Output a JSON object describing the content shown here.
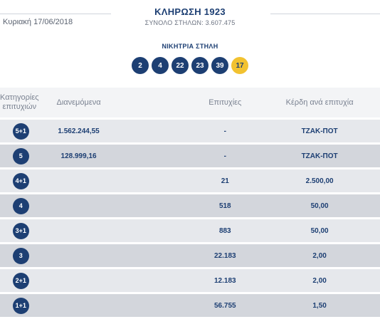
{
  "header": {
    "date": "Κυριακή 17/06/2018",
    "title": "ΚΛΗΡΩΣΗ 1923",
    "subtitle": "ΣΥΝΟΛΟ ΣΤΗΛΩΝ: 3.607.475"
  },
  "winning": {
    "label": "ΝΙΚΗΤΡΙΑ ΣΤΗΛΗ",
    "numbers": [
      "2",
      "4",
      "22",
      "23",
      "39"
    ],
    "bonus": "17"
  },
  "table": {
    "headers": {
      "category_line1": "Κατηγορίες",
      "category_line2": "επιτυχιών",
      "distributed": "Διανεμόμενα",
      "winners": "Επιτυχίες",
      "prize": "Κέρδη ανά επιτυχία"
    },
    "rows": [
      {
        "category": "5+1",
        "distributed": "1.562.244,55",
        "winners": "-",
        "prize": "ΤΖΑΚ-ΠΟΤ"
      },
      {
        "category": "5",
        "distributed": "128.999,16",
        "winners": "-",
        "prize": "ΤΖΑΚ-ΠΟΤ"
      },
      {
        "category": "4+1",
        "distributed": "",
        "winners": "21",
        "prize": "2.500,00"
      },
      {
        "category": "4",
        "distributed": "",
        "winners": "518",
        "prize": "50,00"
      },
      {
        "category": "3+1",
        "distributed": "",
        "winners": "883",
        "prize": "50,00"
      },
      {
        "category": "3",
        "distributed": "",
        "winners": "22.183",
        "prize": "2,00"
      },
      {
        "category": "2+1",
        "distributed": "",
        "winners": "12.183",
        "prize": "2,00"
      },
      {
        "category": "1+1",
        "distributed": "",
        "winners": "56.755",
        "prize": "1,50"
      }
    ]
  }
}
